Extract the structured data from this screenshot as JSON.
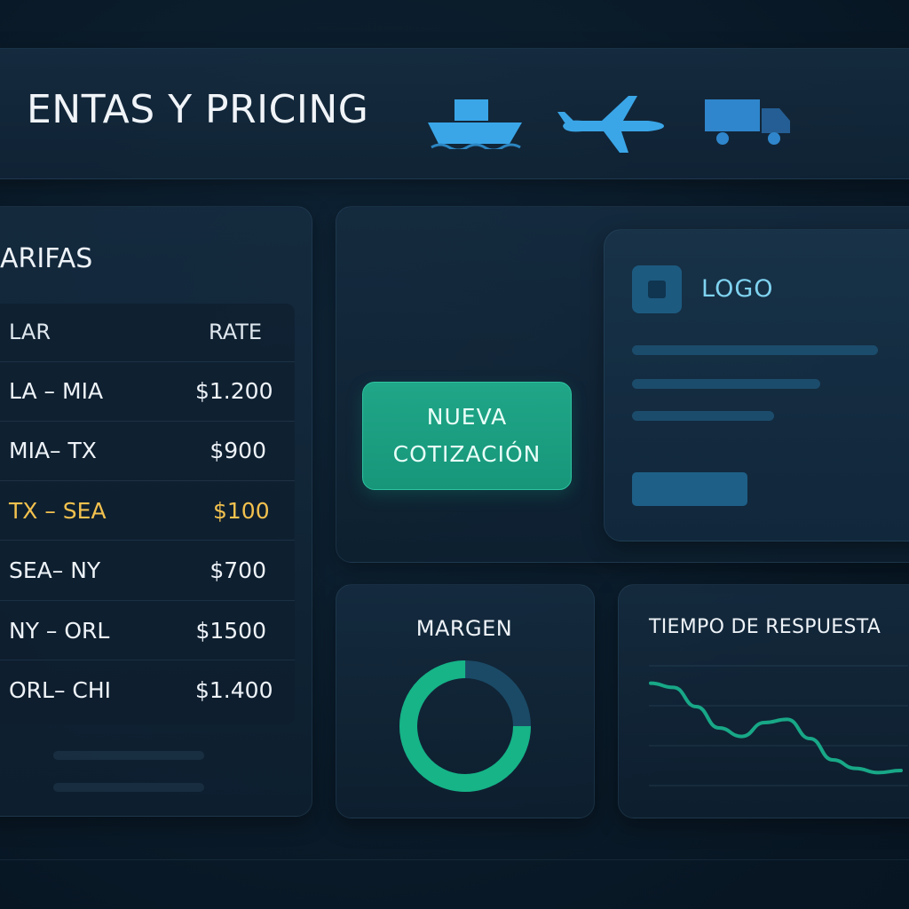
{
  "header": {
    "title": "ENTAS Y PRICING",
    "transport_icons": [
      "ship-icon",
      "airplane-icon",
      "truck-icon"
    ],
    "icon_color": "#3aa6e8"
  },
  "rates": {
    "title": "ARIFAS",
    "columns": [
      "LAR",
      "RATE"
    ],
    "rows": [
      {
        "route": "LA – MIA",
        "rate": "$1.200",
        "highlight": false
      },
      {
        "route": "MIA– TX",
        "rate": "$900",
        "highlight": false
      },
      {
        "route": "TX – SEA",
        "rate": "$100",
        "highlight": true
      },
      {
        "route": "SEA– NY",
        "rate": "$700",
        "highlight": false
      },
      {
        "route": "NY – ORL",
        "rate": "$1500",
        "highlight": false
      },
      {
        "route": "ORL– CHI",
        "rate": "$1.400",
        "highlight": false
      }
    ],
    "highlight_color": "#f2c14e"
  },
  "actions": {
    "new_quote_line1": "NUEVA",
    "new_quote_line2": "COTIZACIÓN",
    "accent_color": "#1fa385"
  },
  "card": {
    "logo_label": "LOGO"
  },
  "margin": {
    "title": "MARGEN",
    "filled_fraction": 0.75,
    "fill_color": "#16b487",
    "track_color": "#1b4a66"
  },
  "response_time": {
    "title": "TIEMPO DE RESPUESTA",
    "line_color": "#18a887",
    "trend": [
      0.92,
      0.88,
      0.7,
      0.5,
      0.42,
      0.55,
      0.58,
      0.4,
      0.2,
      0.12,
      0.08,
      0.1
    ]
  }
}
